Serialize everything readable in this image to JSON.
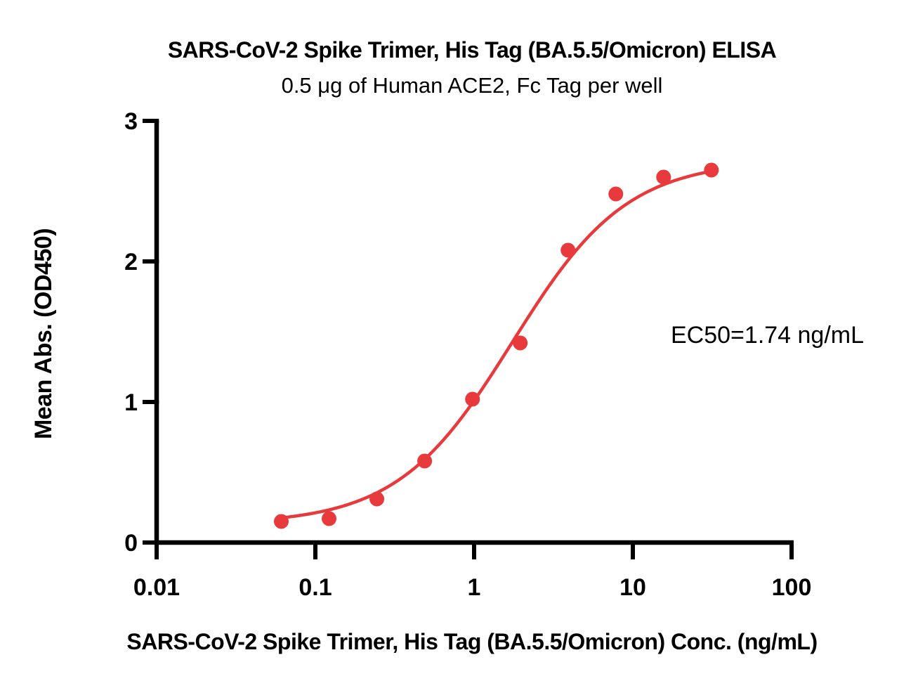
{
  "chart_data": {
    "type": "scatter",
    "title": "SARS-CoV-2 Spike Trimer, His Tag (BA.5.5/Omicron) ELISA",
    "subtitle": "0.5 μg of Human ACE2, Fc Tag per well",
    "xlabel": "SARS-CoV-2 Spike Trimer, His Tag (BA.5.5/Omicron) Conc. (ng/mL)",
    "ylabel": "Mean Abs. (OD450)",
    "x_scale": "log10",
    "xlim": [
      0.01,
      100
    ],
    "ylim": [
      0,
      3
    ],
    "x_ticks": [
      0.01,
      0.1,
      1,
      10,
      100
    ],
    "x_tick_labels": [
      "0.01",
      "0.1",
      "1",
      "10",
      "100"
    ],
    "y_ticks": [
      0,
      1,
      2,
      3
    ],
    "y_tick_labels": [
      "0",
      "1",
      "2",
      "3"
    ],
    "grid": false,
    "legend": "none",
    "axis_color": "#000000",
    "series": [
      {
        "marker": "circle",
        "color": "#E8393D",
        "x": [
          0.061,
          0.122,
          0.244,
          0.488,
          0.977,
          1.953,
          3.906,
          7.813,
          15.625,
          31.25
        ],
        "y": [
          0.15,
          0.17,
          0.31,
          0.58,
          1.02,
          1.42,
          2.08,
          2.48,
          2.6,
          2.65
        ]
      }
    ],
    "fit_curve": {
      "model": "4PL",
      "bottom": 0.13,
      "top": 2.72,
      "ec50": 1.74,
      "hill": 1.2,
      "color": "#E8393D",
      "x_start": 0.061,
      "x_end": 31.25
    },
    "annotations": [
      {
        "text": "EC50=1.74 ng/mL"
      }
    ]
  }
}
